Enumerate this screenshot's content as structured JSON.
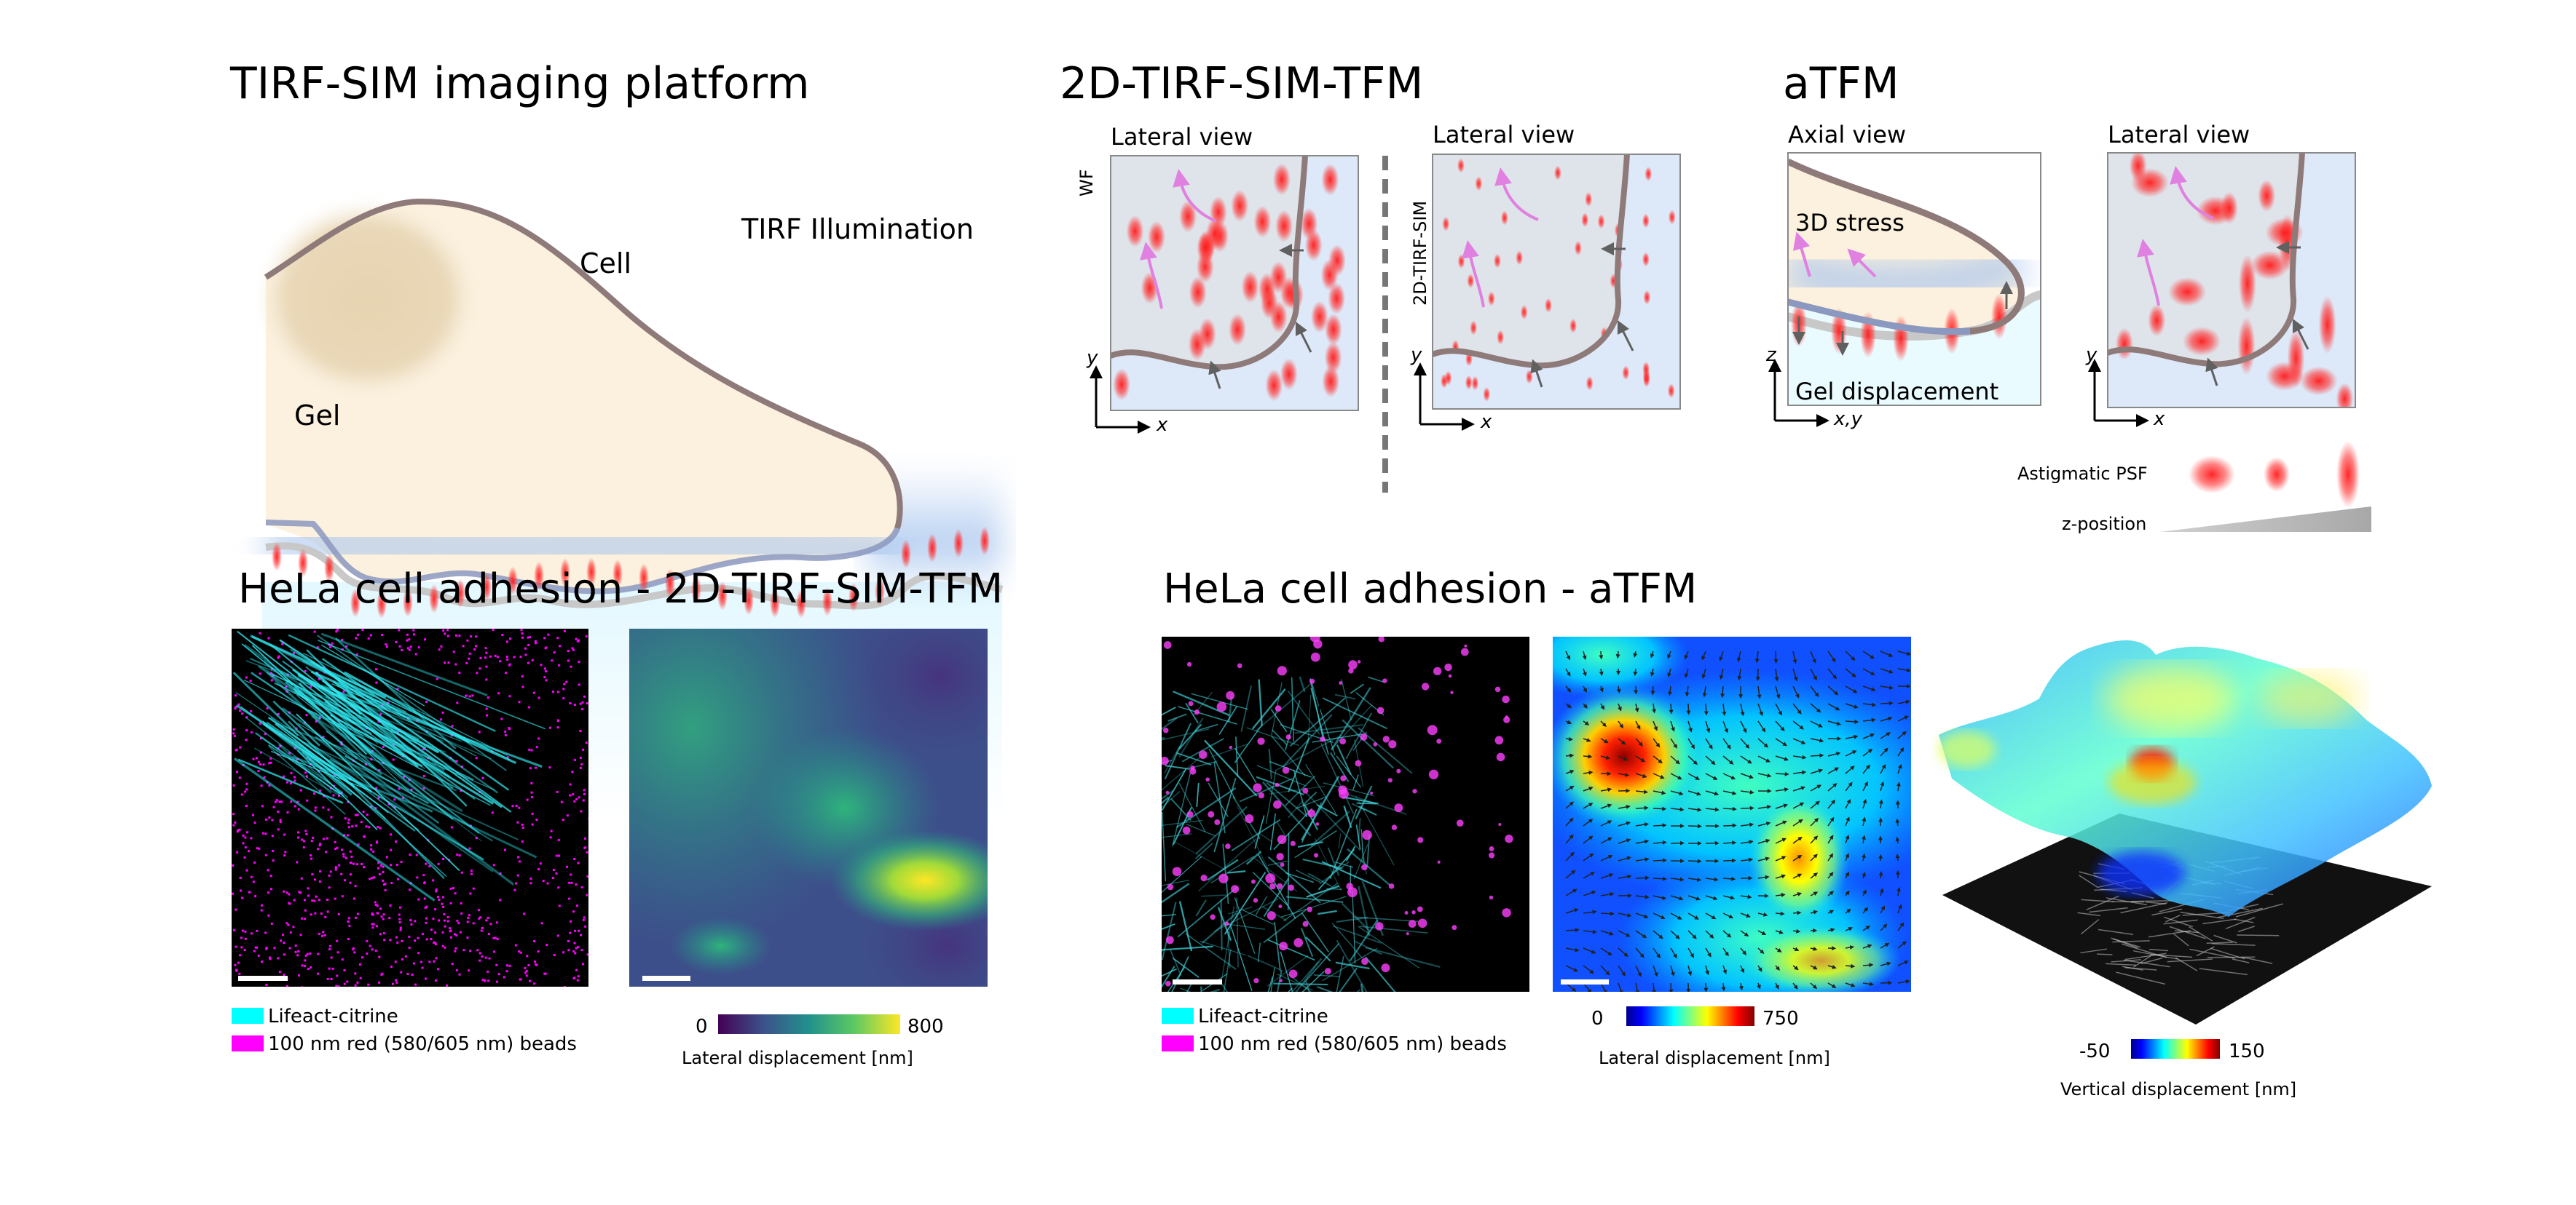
{
  "platform": {
    "title": "TIRF-SIM imaging platform",
    "cell_label": "Cell",
    "tirf_label": "TIRF Illumination",
    "gel_label": "Gel"
  },
  "tfm2d": {
    "title": "2D-TIRF-SIM-TFM",
    "wf_view": "Lateral view",
    "wf_side_label": "WF",
    "sim_view": "Lateral view",
    "sim_side_label": "2D-TIRF-SIM",
    "axis_x": "x",
    "axis_y": "y"
  },
  "atfm": {
    "title": "aTFM",
    "axial_view": "Axial view",
    "stress_label": "3D stress",
    "gel_label": "Gel displacement",
    "axis_z": "z",
    "axis_xy": "x,y",
    "lateral_view": "Lateral view",
    "axis_x": "x",
    "axis_y": "y",
    "psf_label": "Astigmatic PSF",
    "z_label": "z-position"
  },
  "results_tfm2d": {
    "title": "HeLa cell adhesion - 2D-TIRF-SIM-TFM",
    "legend": [
      {
        "label": "Lifeact-citrine",
        "color": "#00ffff"
      },
      {
        "label": "100 nm red (580/605 nm) beads",
        "color": "#ff00ff"
      }
    ],
    "colorbar": {
      "min": "0",
      "max": "800",
      "label": "Lateral displacement [nm]",
      "colormap": "viridis"
    }
  },
  "results_atfm": {
    "title": "HeLa cell adhesion - aTFM",
    "legend": [
      {
        "label": "Lifeact-citrine",
        "color": "#00ffff"
      },
      {
        "label": "100 nm red (580/605 nm) beads",
        "color": "#ff00ff"
      }
    ],
    "lateral_colorbar": {
      "min": "0",
      "max": "750",
      "label": "Lateral displacement [nm]",
      "colormap": "jet"
    },
    "vertical_colorbar": {
      "min": "-50",
      "max": "150",
      "label": "Vertical displacement [nm]",
      "colormap": "jet"
    }
  },
  "colors": {
    "cell_border": "#8f7a7a",
    "bead": "#ff2020",
    "force_arrow": "#e080e0",
    "displacement_arrow": "#606060",
    "cell_fill": "#fbf1de",
    "gel_fill": "#eafbff"
  }
}
